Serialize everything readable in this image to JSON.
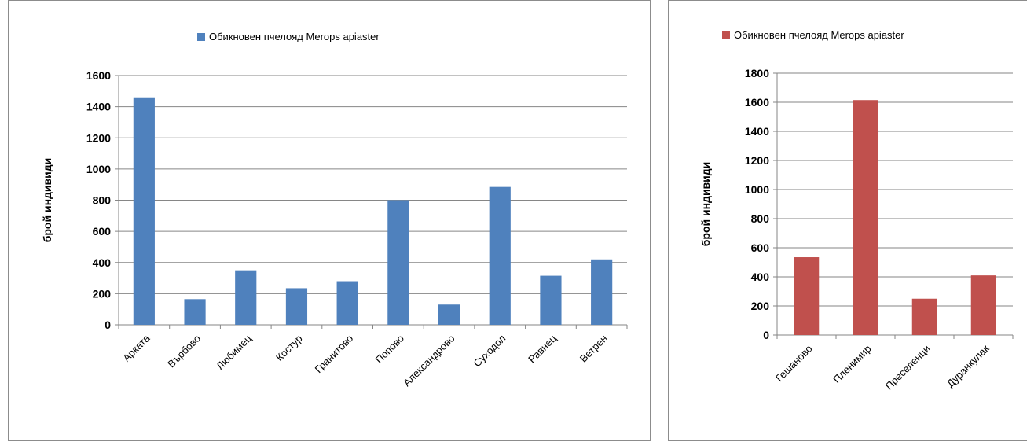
{
  "chart_data": [
    {
      "type": "bar",
      "legend_position": "top",
      "grid": true,
      "ylabel": "брой индивиди",
      "ylim": [
        0,
        1600
      ],
      "yticks": [
        "0",
        "200",
        "400",
        "600",
        "800",
        "1000",
        "1200",
        "1400",
        "1600"
      ],
      "categories": [
        "Арката",
        "Върбово",
        "Любимец",
        "Костур",
        "Гранитово",
        "Попово",
        "Александрово",
        "Суходол",
        "Равнец",
        "Ветрен"
      ],
      "series": [
        {
          "name": "Обикновен пчелояд Merops apiaster",
          "color": "#4f81bd",
          "values": [
            1460,
            165,
            350,
            235,
            280,
            800,
            130,
            885,
            315,
            420
          ]
        }
      ]
    },
    {
      "type": "bar",
      "legend_position": "top",
      "grid": true,
      "ylabel": "брой индивиди",
      "ylim": [
        0,
        1800
      ],
      "yticks": [
        "0",
        "200",
        "400",
        "600",
        "800",
        "1000",
        "1200",
        "1400",
        "1600",
        "1800"
      ],
      "categories": [
        "Гешаново",
        "Пленимир",
        "Преселенци",
        "Дуранкулак"
      ],
      "series": [
        {
          "name": "Обикновен пчелояд Merops apiaster",
          "color": "#c0504d",
          "values": [
            535,
            1615,
            250,
            410
          ]
        }
      ]
    }
  ]
}
